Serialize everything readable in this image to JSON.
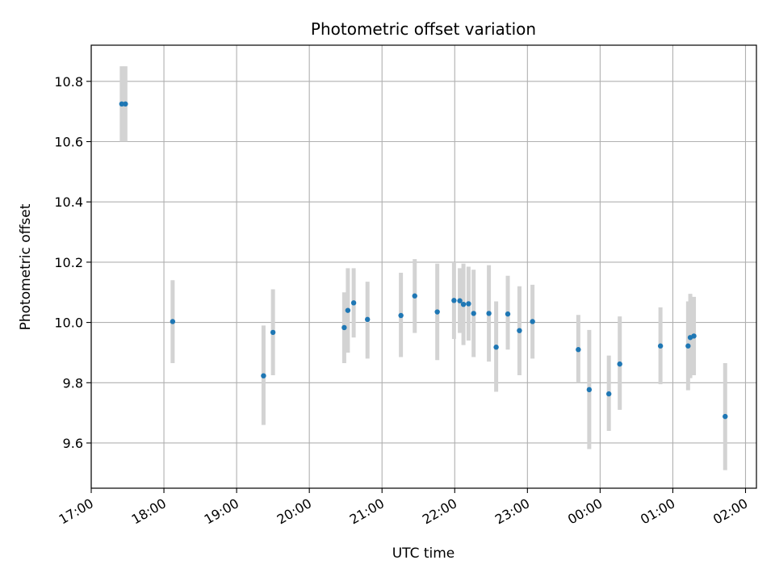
{
  "chart_data": {
    "type": "scatter",
    "title": "Photometric offset variation",
    "xlabel": "UTC time",
    "ylabel": "Photometric offset",
    "x_unit": "hours after 17:00 UTC",
    "xlim": [
      0,
      9.15
    ],
    "ylim": [
      9.45,
      10.92
    ],
    "grid": true,
    "x_ticks": [
      {
        "value": 0,
        "label": "17:00"
      },
      {
        "value": 1,
        "label": "18:00"
      },
      {
        "value": 2,
        "label": "19:00"
      },
      {
        "value": 3,
        "label": "20:00"
      },
      {
        "value": 4,
        "label": "21:00"
      },
      {
        "value": 5,
        "label": "22:00"
      },
      {
        "value": 6,
        "label": "23:00"
      },
      {
        "value": 7,
        "label": "00:00"
      },
      {
        "value": 8,
        "label": "01:00"
      },
      {
        "value": 9,
        "label": "02:00"
      }
    ],
    "y_ticks": [
      {
        "value": 9.6,
        "label": "9.6"
      },
      {
        "value": 9.8,
        "label": "9.8"
      },
      {
        "value": 10.0,
        "label": "10.0"
      },
      {
        "value": 10.2,
        "label": "10.2"
      },
      {
        "value": 10.4,
        "label": "10.4"
      },
      {
        "value": 10.6,
        "label": "10.6"
      },
      {
        "value": 10.8,
        "label": "10.8"
      }
    ],
    "point_color": "#1f77b4",
    "errorbar_color": "#d3d3d3",
    "points": [
      {
        "x": 0.42,
        "y": 10.725,
        "yerr_low": 10.6,
        "yerr_high": 10.85
      },
      {
        "x": 0.47,
        "y": 10.725,
        "yerr_low": 10.6,
        "yerr_high": 10.85
      },
      {
        "x": 1.12,
        "y": 10.003,
        "yerr_low": 9.865,
        "yerr_high": 10.14
      },
      {
        "x": 2.37,
        "y": 9.823,
        "yerr_low": 9.66,
        "yerr_high": 9.99
      },
      {
        "x": 2.5,
        "y": 9.967,
        "yerr_low": 9.825,
        "yerr_high": 10.11
      },
      {
        "x": 3.48,
        "y": 9.983,
        "yerr_low": 9.865,
        "yerr_high": 10.1
      },
      {
        "x": 3.53,
        "y": 10.04,
        "yerr_low": 9.9,
        "yerr_high": 10.18
      },
      {
        "x": 3.61,
        "y": 10.065,
        "yerr_low": 9.95,
        "yerr_high": 10.18
      },
      {
        "x": 3.8,
        "y": 10.01,
        "yerr_low": 9.88,
        "yerr_high": 10.135
      },
      {
        "x": 4.26,
        "y": 10.023,
        "yerr_low": 9.885,
        "yerr_high": 10.165
      },
      {
        "x": 4.45,
        "y": 10.088,
        "yerr_low": 9.965,
        "yerr_high": 10.21
      },
      {
        "x": 4.76,
        "y": 10.035,
        "yerr_low": 9.875,
        "yerr_high": 10.195
      },
      {
        "x": 4.99,
        "y": 10.073,
        "yerr_low": 9.945,
        "yerr_high": 10.2
      },
      {
        "x": 5.07,
        "y": 10.072,
        "yerr_low": 9.965,
        "yerr_high": 10.18
      },
      {
        "x": 5.12,
        "y": 10.06,
        "yerr_low": 9.925,
        "yerr_high": 10.195
      },
      {
        "x": 5.19,
        "y": 10.062,
        "yerr_low": 9.94,
        "yerr_high": 10.185
      },
      {
        "x": 5.26,
        "y": 10.03,
        "yerr_low": 9.885,
        "yerr_high": 10.175
      },
      {
        "x": 5.47,
        "y": 10.03,
        "yerr_low": 9.87,
        "yerr_high": 10.19
      },
      {
        "x": 5.57,
        "y": 9.918,
        "yerr_low": 9.77,
        "yerr_high": 10.07
      },
      {
        "x": 5.73,
        "y": 10.028,
        "yerr_low": 9.91,
        "yerr_high": 10.155
      },
      {
        "x": 5.89,
        "y": 9.973,
        "yerr_low": 9.825,
        "yerr_high": 10.12
      },
      {
        "x": 6.07,
        "y": 10.003,
        "yerr_low": 9.88,
        "yerr_high": 10.125
      },
      {
        "x": 6.7,
        "y": 9.91,
        "yerr_low": 9.8,
        "yerr_high": 10.025
      },
      {
        "x": 6.85,
        "y": 9.777,
        "yerr_low": 9.58,
        "yerr_high": 9.975
      },
      {
        "x": 7.12,
        "y": 9.763,
        "yerr_low": 9.64,
        "yerr_high": 9.89
      },
      {
        "x": 7.27,
        "y": 9.862,
        "yerr_low": 9.71,
        "yerr_high": 10.02
      },
      {
        "x": 7.83,
        "y": 9.922,
        "yerr_low": 9.795,
        "yerr_high": 10.05
      },
      {
        "x": 8.21,
        "y": 9.922,
        "yerr_low": 9.775,
        "yerr_high": 10.07
      },
      {
        "x": 8.24,
        "y": 9.95,
        "yerr_low": 9.815,
        "yerr_high": 10.095
      },
      {
        "x": 8.29,
        "y": 9.955,
        "yerr_low": 9.825,
        "yerr_high": 10.085
      },
      {
        "x": 8.72,
        "y": 9.688,
        "yerr_low": 9.51,
        "yerr_high": 9.865
      }
    ]
  }
}
